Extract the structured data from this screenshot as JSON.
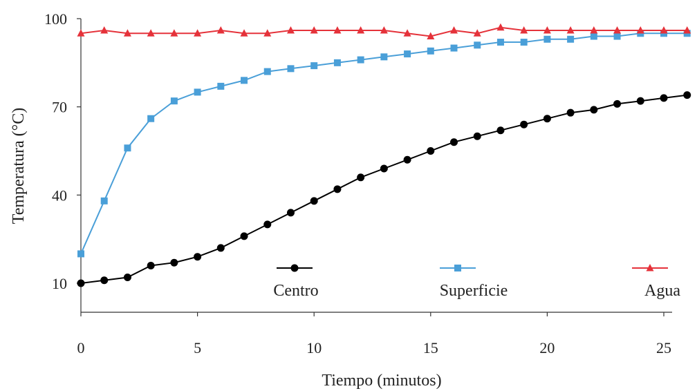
{
  "chart_data": {
    "type": "line",
    "title": "",
    "xlabel": "Tiempo (minutos)",
    "ylabel": "Temperatura (°C)",
    "xlim": [
      0,
      26
    ],
    "ylim": [
      0,
      100
    ],
    "xticks": [
      0,
      5,
      10,
      15,
      20,
      25
    ],
    "yticks": [
      10,
      40,
      70,
      100
    ],
    "grid": false,
    "legend": "bottom",
    "x": [
      0,
      1,
      2,
      3,
      4,
      5,
      6,
      7,
      8,
      9,
      10,
      11,
      12,
      13,
      14,
      15,
      16,
      17,
      18,
      19,
      20,
      21,
      22,
      23,
      24,
      25,
      26
    ],
    "series": [
      {
        "name": "Centro",
        "color": "#000000",
        "marker": "circle",
        "values": [
          10,
          11,
          12,
          16,
          17,
          19,
          22,
          26,
          30,
          34,
          38,
          42,
          46,
          49,
          52,
          55,
          58,
          60,
          62,
          64,
          66,
          68,
          69,
          71,
          72,
          73,
          74
        ]
      },
      {
        "name": "Superficie",
        "color": "#4a9fd8",
        "marker": "square",
        "values": [
          20,
          38,
          56,
          66,
          72,
          75,
          77,
          79,
          82,
          83,
          84,
          85,
          86,
          87,
          88,
          89,
          90,
          91,
          92,
          92,
          93,
          93,
          94,
          94,
          95,
          95,
          95
        ]
      },
      {
        "name": "Agua",
        "color": "#e5323a",
        "marker": "triangle",
        "values": [
          95,
          96,
          95,
          95,
          95,
          95,
          96,
          95,
          95,
          96,
          96,
          96,
          96,
          96,
          95,
          94,
          96,
          95,
          97,
          96,
          96,
          96,
          96,
          96,
          96,
          96,
          96
        ]
      }
    ]
  }
}
